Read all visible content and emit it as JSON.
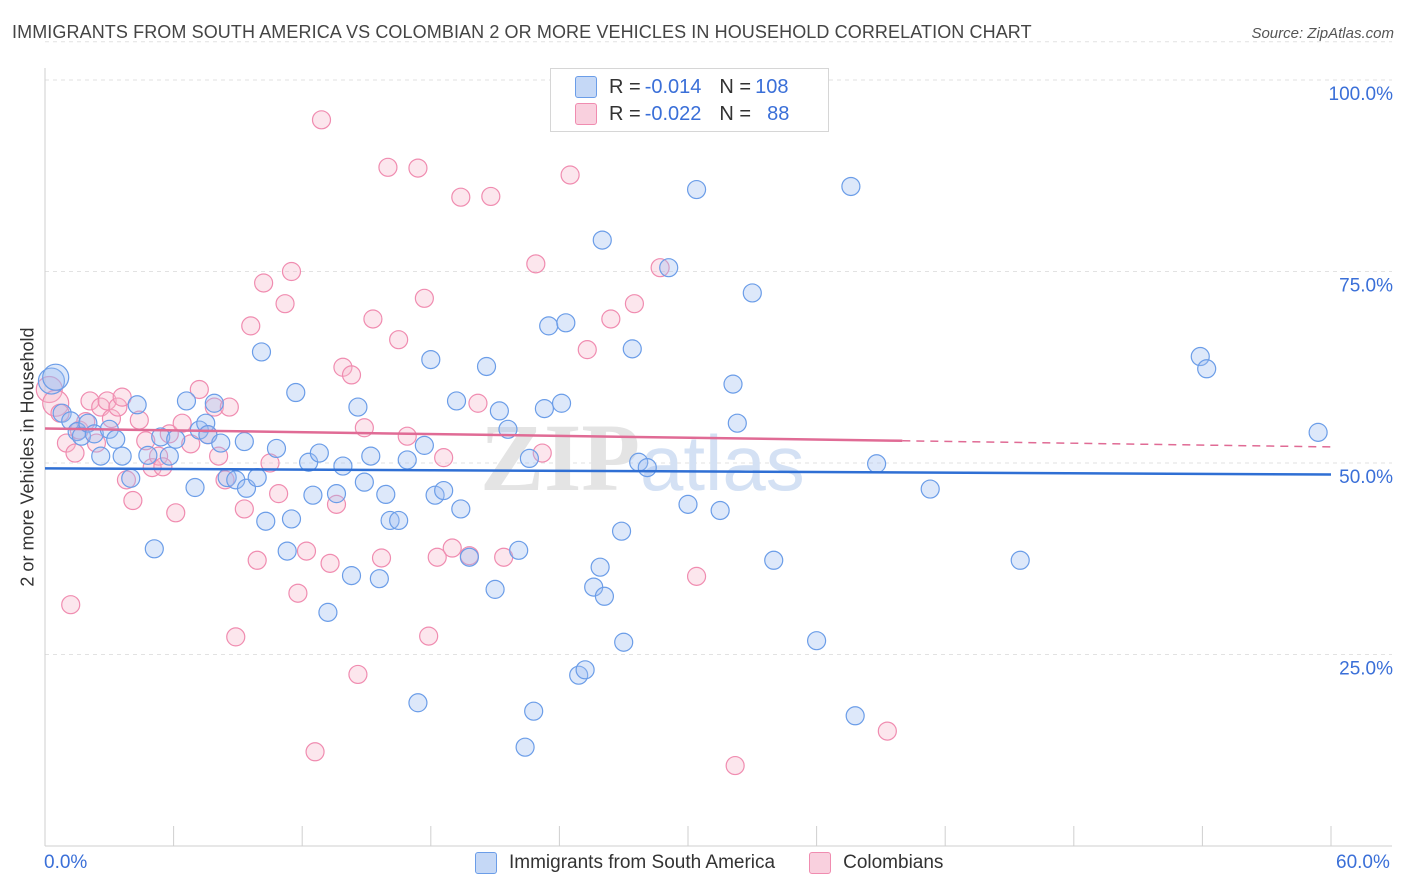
{
  "title": "IMMIGRANTS FROM SOUTH AMERICA VS COLOMBIAN 2 OR MORE VEHICLES IN HOUSEHOLD CORRELATION CHART",
  "source": "Source: ZipAtlas.com",
  "watermark": {
    "zip": "ZIP",
    "atlas": "atlas"
  },
  "legend": {
    "rows": [
      {
        "r_label": "R = ",
        "r_value": "-0.014",
        "n_label": "N = ",
        "n_value": "108"
      },
      {
        "r_label": "R = ",
        "r_value": "-0.022",
        "n_label": "N = ",
        "n_value": "88"
      }
    ]
  },
  "chart_data": {
    "type": "scatter",
    "title": "IMMIGRANTS FROM SOUTH AMERICA VS COLOMBIAN 2 OR MORE VEHICLES IN HOUSEHOLD CORRELATION CHART",
    "xlabel": "",
    "ylabel": "2 or more Vehicles in Household",
    "xlim": [
      0,
      60
    ],
    "ylim": [
      0,
      105
    ],
    "x_tick_labels": [
      "0.0%",
      "60.0%"
    ],
    "y_ticks": [
      25,
      50,
      75,
      100
    ],
    "y_tick_labels": [
      "25.0%",
      "50.0%",
      "75.0%",
      "100.0%"
    ],
    "grid": "horizontal dashed",
    "legend_position": "top-center",
    "colors": {
      "blue": "#6b9de8",
      "pink": "#f08cb0",
      "blue_line": "#2f6fd4",
      "pink_line": "#e06b95"
    },
    "series": [
      {
        "name": "Immigrants from South America",
        "color": "#6b9de8",
        "trend": {
          "x": [
            0,
            60
          ],
          "y": [
            49.3,
            48.5
          ]
        },
        "points": [
          [
            0.3,
            60.7
          ],
          [
            0.5,
            61.2
          ],
          [
            0.8,
            56.5
          ],
          [
            1.2,
            55.5
          ],
          [
            1.5,
            54.1
          ],
          [
            1.7,
            53.5
          ],
          [
            2.0,
            55.2
          ],
          [
            2.3,
            53.8
          ],
          [
            2.6,
            50.9
          ],
          [
            3.0,
            54.4
          ],
          [
            3.3,
            53.1
          ],
          [
            3.6,
            50.9
          ],
          [
            4.0,
            48.0
          ],
          [
            4.3,
            57.6
          ],
          [
            4.8,
            51.0
          ],
          [
            5.1,
            38.8
          ],
          [
            5.4,
            53.4
          ],
          [
            5.8,
            50.9
          ],
          [
            6.1,
            53.1
          ],
          [
            6.6,
            58.1
          ],
          [
            7.0,
            46.8
          ],
          [
            7.2,
            54.3
          ],
          [
            7.5,
            55.2
          ],
          [
            7.6,
            53.7
          ],
          [
            7.9,
            57.8
          ],
          [
            8.2,
            52.6
          ],
          [
            8.5,
            48.1
          ],
          [
            8.9,
            47.8
          ],
          [
            9.3,
            52.8
          ],
          [
            9.4,
            46.7
          ],
          [
            9.9,
            48.1
          ],
          [
            10.1,
            64.5
          ],
          [
            10.3,
            42.4
          ],
          [
            10.8,
            51.9
          ],
          [
            11.3,
            38.5
          ],
          [
            11.5,
            42.7
          ],
          [
            11.7,
            59.2
          ],
          [
            12.3,
            50.1
          ],
          [
            12.5,
            45.8
          ],
          [
            12.8,
            51.3
          ],
          [
            13.2,
            30.5
          ],
          [
            13.6,
            46.0
          ],
          [
            13.9,
            49.6
          ],
          [
            14.3,
            35.3
          ],
          [
            14.6,
            57.3
          ],
          [
            14.9,
            47.5
          ],
          [
            15.2,
            50.9
          ],
          [
            15.6,
            34.9
          ],
          [
            15.9,
            45.9
          ],
          [
            16.1,
            42.5
          ],
          [
            16.5,
            42.5
          ],
          [
            16.9,
            50.4
          ],
          [
            17.4,
            18.7
          ],
          [
            17.7,
            52.3
          ],
          [
            18.0,
            63.5
          ],
          [
            18.2,
            45.8
          ],
          [
            18.6,
            46.4
          ],
          [
            19.2,
            58.1
          ],
          [
            19.4,
            44.0
          ],
          [
            19.8,
            37.7
          ],
          [
            20.6,
            62.6
          ],
          [
            21.0,
            33.5
          ],
          [
            21.2,
            56.8
          ],
          [
            21.6,
            54.4
          ],
          [
            22.1,
            38.6
          ],
          [
            22.4,
            12.9
          ],
          [
            22.6,
            50.6
          ],
          [
            22.8,
            17.6
          ],
          [
            23.3,
            57.1
          ],
          [
            23.5,
            67.9
          ],
          [
            24.1,
            57.8
          ],
          [
            24.3,
            68.3
          ],
          [
            24.9,
            22.3
          ],
          [
            25.2,
            23.0
          ],
          [
            25.6,
            33.8
          ],
          [
            25.9,
            36.4
          ],
          [
            26.0,
            79.1
          ],
          [
            26.1,
            32.6
          ],
          [
            26.9,
            41.1
          ],
          [
            27.0,
            26.6
          ],
          [
            27.4,
            64.9
          ],
          [
            27.7,
            50.1
          ],
          [
            28.1,
            49.4
          ],
          [
            29.1,
            75.5
          ],
          [
            30.0,
            44.6
          ],
          [
            30.4,
            85.7
          ],
          [
            31.5,
            43.8
          ],
          [
            32.1,
            60.3
          ],
          [
            32.3,
            55.2
          ],
          [
            33.0,
            72.2
          ],
          [
            34.0,
            37.3
          ],
          [
            36.0,
            26.8
          ],
          [
            37.6,
            86.1
          ],
          [
            37.8,
            17.0
          ],
          [
            38.8,
            49.9
          ],
          [
            41.3,
            46.6
          ],
          [
            45.5,
            37.3
          ],
          [
            53.9,
            63.9
          ],
          [
            54.2,
            62.3
          ],
          [
            59.4,
            54.0
          ]
        ]
      },
      {
        "name": "Colombians",
        "color": "#f08cb0",
        "trend": {
          "x": [
            0,
            40
          ],
          "y": [
            54.5,
            52.9
          ],
          "dashed_to": [
            60,
            52.1
          ]
        },
        "points": [
          [
            0.2,
            59.6
          ],
          [
            0.5,
            57.8
          ],
          [
            0.7,
            56.5
          ],
          [
            1.0,
            52.6
          ],
          [
            1.2,
            31.5
          ],
          [
            1.4,
            51.3
          ],
          [
            1.6,
            54.3
          ],
          [
            1.9,
            55.4
          ],
          [
            2.1,
            58.1
          ],
          [
            2.4,
            52.6
          ],
          [
            2.6,
            57.3
          ],
          [
            2.9,
            58.1
          ],
          [
            3.1,
            55.8
          ],
          [
            3.4,
            57.3
          ],
          [
            3.6,
            58.6
          ],
          [
            3.8,
            47.8
          ],
          [
            4.1,
            45.1
          ],
          [
            4.4,
            55.6
          ],
          [
            4.7,
            52.9
          ],
          [
            5.0,
            49.4
          ],
          [
            5.3,
            50.9
          ],
          [
            5.5,
            49.5
          ],
          [
            5.8,
            53.8
          ],
          [
            6.1,
            43.5
          ],
          [
            6.4,
            55.2
          ],
          [
            6.8,
            52.5
          ],
          [
            7.2,
            59.6
          ],
          [
            7.6,
            53.7
          ],
          [
            7.9,
            57.3
          ],
          [
            8.1,
            50.9
          ],
          [
            8.4,
            47.8
          ],
          [
            8.6,
            57.3
          ],
          [
            8.9,
            27.3
          ],
          [
            9.3,
            44.0
          ],
          [
            9.6,
            67.9
          ],
          [
            9.9,
            37.3
          ],
          [
            10.2,
            73.5
          ],
          [
            10.5,
            50.0
          ],
          [
            10.9,
            46.0
          ],
          [
            11.2,
            70.8
          ],
          [
            11.5,
            75.0
          ],
          [
            11.8,
            33.0
          ],
          [
            12.2,
            38.5
          ],
          [
            12.6,
            12.3
          ],
          [
            12.9,
            94.8
          ],
          [
            13.3,
            36.9
          ],
          [
            13.6,
            44.6
          ],
          [
            13.9,
            62.5
          ],
          [
            14.3,
            61.5
          ],
          [
            14.6,
            22.4
          ],
          [
            14.9,
            54.6
          ],
          [
            15.3,
            68.8
          ],
          [
            15.7,
            37.6
          ],
          [
            16.0,
            88.6
          ],
          [
            16.5,
            66.1
          ],
          [
            16.9,
            53.5
          ],
          [
            17.4,
            88.5
          ],
          [
            17.7,
            71.5
          ],
          [
            17.9,
            27.4
          ],
          [
            18.3,
            37.7
          ],
          [
            18.6,
            50.7
          ],
          [
            19.0,
            38.9
          ],
          [
            19.4,
            84.7
          ],
          [
            19.8,
            37.9
          ],
          [
            20.2,
            57.8
          ],
          [
            20.8,
            84.8
          ],
          [
            21.4,
            37.7
          ],
          [
            22.9,
            76.0
          ],
          [
            23.2,
            51.3
          ],
          [
            24.5,
            87.6
          ],
          [
            25.3,
            64.8
          ],
          [
            26.4,
            68.8
          ],
          [
            27.5,
            70.8
          ],
          [
            28.7,
            75.5
          ],
          [
            30.4,
            35.2
          ],
          [
            32.2,
            10.5
          ],
          [
            39.3,
            15.0
          ]
        ]
      }
    ]
  }
}
